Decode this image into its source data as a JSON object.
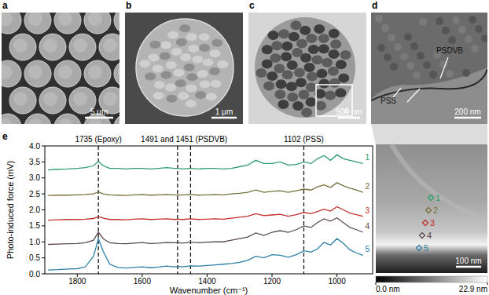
{
  "panels": [
    {
      "label": "a",
      "scale_bar": "5 μm"
    },
    {
      "label": "b",
      "scale_bar": "1 μm"
    },
    {
      "label": "c",
      "scale_bar": "500 nm",
      "inset_label": "d"
    },
    {
      "label": "d",
      "scale_bar": "200 nm",
      "annotations": [
        "PSDVB",
        "PSS"
      ]
    },
    {
      "label": "e"
    }
  ],
  "chart_data": {
    "type": "line",
    "x_label": "Wavenumber (cm⁻¹)",
    "y_label": "Photo-induced force (mV)",
    "xlim": [
      1900,
      890
    ],
    "xticks": [
      1800,
      1600,
      1400,
      1200,
      1000
    ],
    "ylim": [
      0.0,
      4.0
    ],
    "yticks": [
      {
        "value": 0.0,
        "label": "0.0"
      },
      0.5,
      {
        "value": 1.0,
        "label": "1.0"
      },
      1.5,
      {
        "value": 2.0,
        "label": "2.0"
      },
      2.5,
      {
        "value": 3.0,
        "label": "3.0"
      },
      3.5,
      {
        "value": 4.0,
        "label": "4.0"
      }
    ],
    "grid": false,
    "annotations": [
      {
        "label": "1735 (Epoxy)",
        "x": [
          1735
        ]
      },
      {
        "label": "1491 and 1451 (PSDVB)",
        "x": [
          1491,
          1451
        ]
      },
      {
        "label": "1102 (PSS)",
        "x": [
          1102
        ]
      }
    ],
    "x": [
      1890,
      1860,
      1830,
      1800,
      1775,
      1750,
      1735,
      1720,
      1700,
      1675,
      1650,
      1625,
      1600,
      1575,
      1550,
      1525,
      1500,
      1491,
      1475,
      1451,
      1425,
      1400,
      1375,
      1350,
      1325,
      1300,
      1275,
      1250,
      1225,
      1200,
      1175,
      1150,
      1125,
      1102,
      1080,
      1060,
      1040,
      1020,
      1000,
      980,
      960,
      940,
      920
    ],
    "series": [
      {
        "name": "1",
        "color": "#2e9e6b",
        "values": [
          3.25,
          3.27,
          3.28,
          3.3,
          3.32,
          3.38,
          3.52,
          3.38,
          3.3,
          3.3,
          3.28,
          3.3,
          3.3,
          3.28,
          3.3,
          3.32,
          3.3,
          3.3,
          3.28,
          3.3,
          3.28,
          3.3,
          3.3,
          3.28,
          3.3,
          3.35,
          3.4,
          3.55,
          3.45,
          3.45,
          3.5,
          3.4,
          3.42,
          3.5,
          3.45,
          3.6,
          3.7,
          3.55,
          3.72,
          3.6,
          3.55,
          3.5,
          3.45
        ]
      },
      {
        "name": "2",
        "color": "#77703c",
        "values": [
          2.45,
          2.46,
          2.46,
          2.47,
          2.48,
          2.5,
          2.56,
          2.5,
          2.47,
          2.46,
          2.45,
          2.47,
          2.48,
          2.46,
          2.47,
          2.48,
          2.47,
          2.46,
          2.47,
          2.48,
          2.46,
          2.47,
          2.48,
          2.47,
          2.5,
          2.52,
          2.55,
          2.62,
          2.55,
          2.58,
          2.6,
          2.55,
          2.6,
          2.65,
          2.62,
          2.72,
          2.78,
          2.7,
          2.85,
          2.75,
          2.68,
          2.62,
          2.55
        ]
      },
      {
        "name": "3",
        "color": "#c42e2e",
        "values": [
          1.68,
          1.69,
          1.7,
          1.7,
          1.71,
          1.73,
          1.79,
          1.74,
          1.7,
          1.7,
          1.69,
          1.71,
          1.72,
          1.7,
          1.71,
          1.72,
          1.7,
          1.71,
          1.7,
          1.72,
          1.7,
          1.71,
          1.72,
          1.71,
          1.74,
          1.77,
          1.8,
          1.88,
          1.82,
          1.84,
          1.86,
          1.8,
          1.85,
          1.92,
          1.88,
          1.95,
          2.02,
          1.96,
          2.1,
          2.0,
          1.9,
          1.85,
          1.8
        ]
      },
      {
        "name": "4",
        "color": "#5b4b4b",
        "values": [
          0.92,
          0.93,
          0.94,
          0.95,
          0.97,
          1.05,
          1.3,
          1.1,
          0.97,
          0.95,
          0.94,
          0.96,
          0.98,
          0.95,
          0.96,
          0.98,
          0.97,
          0.98,
          0.96,
          0.99,
          0.97,
          0.99,
          1.0,
          1.0,
          1.05,
          1.1,
          1.15,
          1.28,
          1.2,
          1.3,
          1.35,
          1.3,
          1.38,
          1.5,
          1.45,
          1.6,
          1.72,
          1.65,
          1.75,
          1.6,
          1.45,
          1.38,
          1.3
        ]
      },
      {
        "name": "5",
        "color": "#2b7fa6",
        "values": [
          0.12,
          0.13,
          0.15,
          0.16,
          0.22,
          0.55,
          1.1,
          0.7,
          0.3,
          0.2,
          0.18,
          0.2,
          0.22,
          0.19,
          0.21,
          0.24,
          0.22,
          0.23,
          0.22,
          0.25,
          0.24,
          0.26,
          0.28,
          0.3,
          0.32,
          0.36,
          0.42,
          0.55,
          0.5,
          0.6,
          0.58,
          0.52,
          0.6,
          0.72,
          0.68,
          0.78,
          0.98,
          0.9,
          1.1,
          0.95,
          0.75,
          0.65,
          0.58
        ]
      }
    ]
  },
  "afm": {
    "scale_bar": "100 nm",
    "colorbar": {
      "range": [
        0.0,
        22.9
      ],
      "ticks": [
        {
          "value": 0.0,
          "label": "0.0 nm"
        },
        {
          "value": 22.9,
          "label": "22.9 nm"
        }
      ]
    }
  }
}
